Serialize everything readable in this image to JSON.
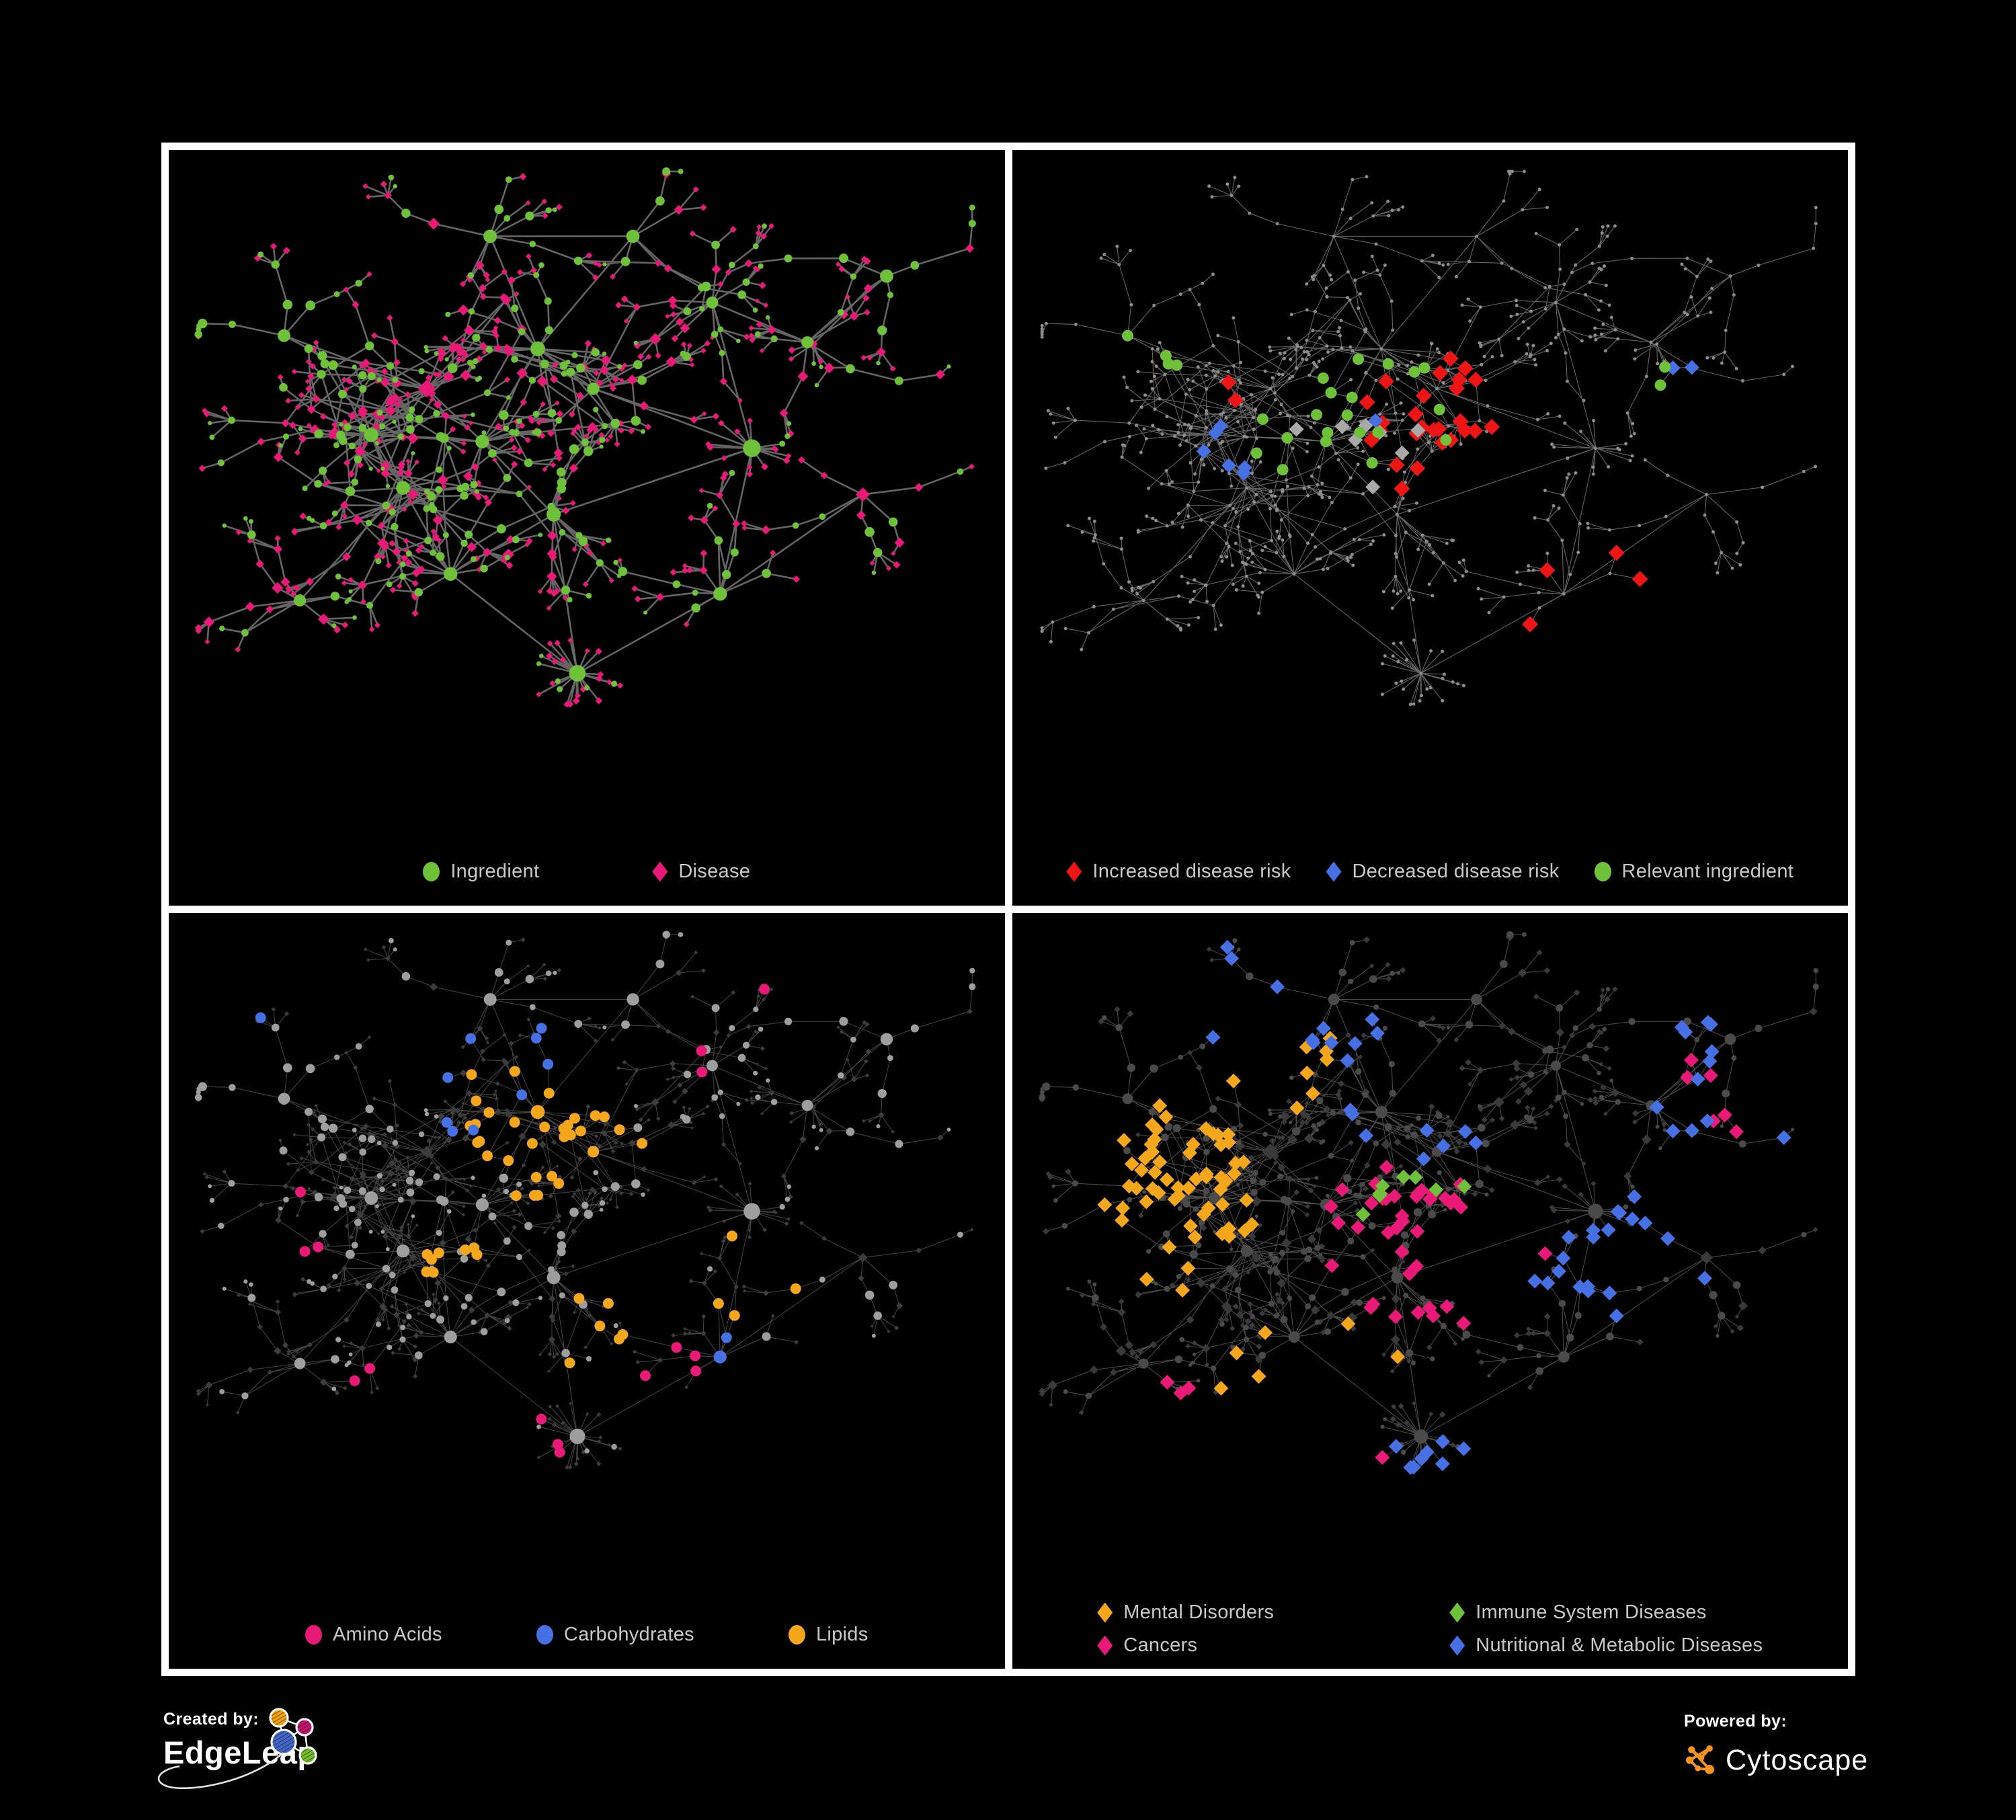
{
  "colors": {
    "background": "#000000",
    "panel_border": "#ffffff",
    "green": "#6FC13A",
    "pink": "#E91977",
    "red": "#ED1515",
    "blue": "#4670E4",
    "orange": "#F5A71C",
    "silver": "#A9A9A9",
    "legend_text": "#C8C8C8",
    "edgeleap_blue": "#4466C8",
    "edgeleap_orange": "#F0A202",
    "edgeleap_pink": "#C4146E",
    "edgeleap_green": "#74BE2E",
    "cytoscape_orange": "#F6921E"
  },
  "panels": [
    {
      "name": "ingredient-disease-network",
      "legend": {
        "layout": "row",
        "items": [
          {
            "label": "Ingredient",
            "shape": "circle",
            "color": "green"
          },
          {
            "label": "Disease",
            "shape": "diamond",
            "color": "pink"
          }
        ]
      }
    },
    {
      "name": "disease-risk-network",
      "legend": {
        "layout": "row",
        "items": [
          {
            "label": "Increased disease risk",
            "shape": "diamond",
            "color": "red"
          },
          {
            "label": "Decreased disease risk",
            "shape": "diamond",
            "color": "blue"
          },
          {
            "label": "Relevant ingredient",
            "shape": "circle",
            "color": "green"
          }
        ]
      }
    },
    {
      "name": "nutrient-class-network",
      "legend": {
        "layout": "row",
        "items": [
          {
            "label": "Amino Acids",
            "shape": "circle",
            "color": "pink"
          },
          {
            "label": "Carbohydrates",
            "shape": "circle",
            "color": "blue"
          },
          {
            "label": "Lipids",
            "shape": "circle",
            "color": "orange"
          }
        ]
      }
    },
    {
      "name": "disease-class-network",
      "legend": {
        "layout": "grid2",
        "items": [
          {
            "label": "Mental Disorders",
            "shape": "diamond",
            "color": "orange"
          },
          {
            "label": "Immune System Diseases",
            "shape": "diamond",
            "color": "green"
          },
          {
            "label": "Cancers",
            "shape": "diamond",
            "color": "pink"
          },
          {
            "label": "Nutritional & Metabolic Diseases",
            "shape": "diamond",
            "color": "blue"
          }
        ]
      }
    }
  ],
  "footer": {
    "created_by": "Created by:",
    "edgeleap": "EdgeLeap",
    "powered_by": "Powered by:",
    "cytoscape": "Cytoscape"
  },
  "network": {
    "seed": 1337,
    "extra_edges": 110,
    "hubs": [
      [
        0.23,
        0.41,
        18,
        0
      ],
      [
        0.3,
        0.34,
        13,
        0
      ],
      [
        0.27,
        0.49,
        13,
        0
      ],
      [
        0.37,
        0.42,
        10,
        0
      ],
      [
        0.44,
        0.28,
        15,
        0
      ],
      [
        0.51,
        0.34,
        9,
        0
      ],
      [
        0.33,
        0.62,
        12,
        0
      ],
      [
        0.46,
        0.53,
        9,
        0
      ],
      [
        0.49,
        0.77,
        26,
        1
      ],
      [
        0.71,
        0.43,
        14,
        1
      ],
      [
        0.66,
        0.21,
        9,
        0
      ],
      [
        0.78,
        0.27,
        7,
        0
      ],
      [
        0.14,
        0.66,
        6,
        0
      ],
      [
        0.67,
        0.65,
        7,
        0
      ],
      [
        0.85,
        0.5,
        5,
        0
      ],
      [
        0.38,
        0.11,
        7,
        0
      ],
      [
        0.56,
        0.11,
        5,
        0
      ],
      [
        0.88,
        0.17,
        4,
        0
      ],
      [
        0.12,
        0.26,
        5,
        0
      ]
    ],
    "links": [
      [
        0,
        1
      ],
      [
        0,
        2
      ],
      [
        1,
        3
      ],
      [
        3,
        4
      ],
      [
        4,
        5
      ],
      [
        2,
        6
      ],
      [
        6,
        8
      ],
      [
        3,
        7
      ],
      [
        7,
        8
      ],
      [
        5,
        9
      ],
      [
        9,
        10
      ],
      [
        10,
        11
      ],
      [
        2,
        12
      ],
      [
        9,
        13
      ],
      [
        13,
        14
      ],
      [
        4,
        15
      ],
      [
        15,
        16
      ],
      [
        11,
        17
      ],
      [
        1,
        18
      ],
      [
        4,
        16
      ],
      [
        7,
        9
      ],
      [
        8,
        13
      ],
      [
        0,
        3
      ],
      [
        6,
        7
      ]
    ],
    "styles": {
      "p1": {
        "edge": "#6A6A6A",
        "edgeW": 2.6,
        "edgeOp": 0.95,
        "rC": 4.6,
        "rD": 5.6
      },
      "p2": {
        "edge": "#7C7C7C",
        "edgeW": 1.1,
        "edgeOp": 0.8,
        "dot": "#8C8C8C",
        "dotR": 2.5
      },
      "p3": {
        "edge": "#999999",
        "edgeW": 1.0,
        "edgeOp": 0.45,
        "circle": "#9E9E9E",
        "diamond": "#3C3C3C",
        "rC": 4.3,
        "rD": 3.7,
        "hlR": 8
      },
      "p4": {
        "edge": "#999999",
        "edgeW": 1.0,
        "edgeOp": 0.5,
        "circle": "#4A4A4A",
        "diamond": "#3A3A3A",
        "rC": 3.9,
        "rD": 5.1,
        "hlH": 11
      }
    },
    "highlights": {
      "p2": [
        {
          "color": "red",
          "shape": "diamond",
          "type": "d",
          "half": 12,
          "blobs": [
            [
              26,
              0.52,
              0.4,
              0.14,
              0.12
            ],
            [
              4,
              0.76,
              0.74,
              0.05,
              0.05
            ],
            [
              2,
              0.27,
              0.33,
              0.04,
              0.04
            ]
          ]
        },
        {
          "color": "blue",
          "shape": "diamond",
          "type": "d",
          "half": 11,
          "blobs": [
            [
              6,
              0.25,
              0.42,
              0.05,
              0.06
            ],
            [
              2,
              0.82,
              0.34,
              0.02,
              0.02
            ],
            [
              1,
              0.45,
              0.37,
              0.05,
              0.05
            ]
          ]
        },
        {
          "color": "silver",
          "shape": "diamond",
          "type": "d",
          "half": 11,
          "blobs": [
            [
              8,
              0.45,
              0.42,
              0.2,
              0.14
            ]
          ]
        },
        {
          "color": "green",
          "shape": "circle",
          "type": "c",
          "r": 8.5,
          "blobs": [
            [
              20,
              0.42,
              0.4,
              0.17,
              0.13
            ],
            [
              4,
              0.15,
              0.28,
              0.06,
              0.06
            ],
            [
              2,
              0.81,
              0.35,
              0.03,
              0.03
            ]
          ]
        }
      ],
      "p3": [
        {
          "color": "orange",
          "shape": "circle",
          "type": "c",
          "blobs": [
            [
              32,
              0.43,
              0.28,
              0.1,
              0.09
            ],
            [
              8,
              0.35,
              0.5,
              0.06,
              0.05
            ],
            [
              6,
              0.55,
              0.6,
              0.12,
              0.1
            ],
            [
              4,
              0.75,
              0.55,
              0.1,
              0.08
            ]
          ]
        },
        {
          "color": "blue",
          "shape": "circle",
          "type": "c",
          "blobs": [
            [
              9,
              0.42,
              0.25,
              0.08,
              0.07
            ],
            [
              2,
              0.72,
              0.62,
              0.1,
              0.08
            ],
            [
              1,
              0.08,
              0.13,
              0.04,
              0.04
            ]
          ]
        },
        {
          "color": "pink",
          "shape": "circle",
          "type": "c",
          "blobs": [
            [
              5,
              0.35,
              0.73,
              0.15,
              0.1
            ],
            [
              4,
              0.62,
              0.68,
              0.1,
              0.1
            ],
            [
              3,
              0.12,
              0.45,
              0.08,
              0.12
            ],
            [
              2,
              0.63,
              0.17,
              0.08,
              0.06
            ],
            [
              1,
              0.75,
              0.04,
              0.04,
              0.04
            ]
          ]
        }
      ],
      "p4": [
        {
          "color": "orange",
          "shape": "diamond",
          "type": "d",
          "blobs": [
            [
              58,
              0.17,
              0.4,
              0.09,
              0.1
            ],
            [
              8,
              0.3,
              0.2,
              0.06,
              0.06
            ],
            [
              6,
              0.35,
              0.66,
              0.15,
              0.09
            ]
          ]
        },
        {
          "color": "pink",
          "shape": "diamond",
          "type": "d",
          "blobs": [
            [
              38,
              0.5,
              0.5,
              0.11,
              0.1
            ],
            [
              6,
              0.86,
              0.25,
              0.05,
              0.05
            ],
            [
              4,
              0.25,
              0.8,
              0.1,
              0.06
            ]
          ]
        },
        {
          "color": "blue",
          "shape": "diamond",
          "type": "d",
          "blobs": [
            [
              20,
              0.74,
              0.52,
              0.09,
              0.09
            ],
            [
              12,
              0.3,
              0.12,
              0.1,
              0.06
            ],
            [
              10,
              0.85,
              0.2,
              0.07,
              0.07
            ],
            [
              8,
              0.6,
              0.85,
              0.15,
              0.08
            ],
            [
              8,
              0.45,
              0.3,
              0.2,
              0.15
            ],
            [
              2,
              0.88,
              0.27,
              0.03,
              0.03
            ]
          ]
        },
        {
          "color": "green",
          "shape": "diamond",
          "type": "d",
          "blobs": [
            [
              8,
              0.45,
              0.42,
              0.18,
              0.15
            ]
          ]
        }
      ]
    }
  }
}
